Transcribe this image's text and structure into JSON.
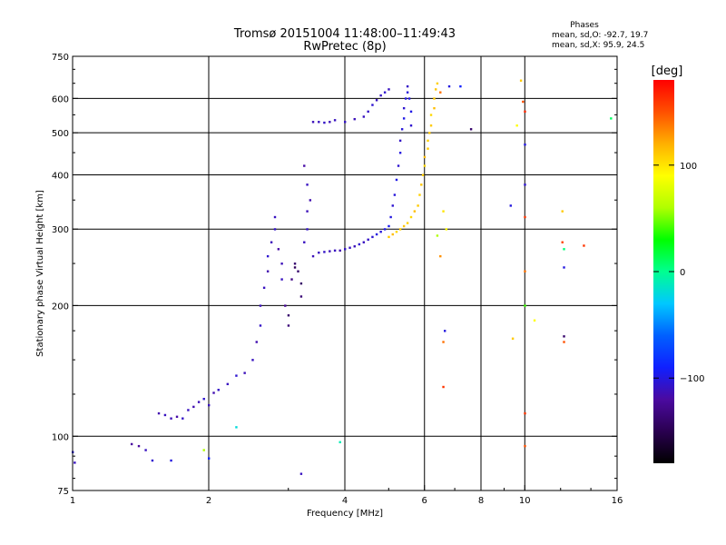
{
  "title": {
    "line1": "Tromsø 20151004 11:48:00–11:49:43",
    "line2": "RwPretec (8p)"
  },
  "phase_box": {
    "heading": "Phases",
    "line_o": "mean, sd,O: -92.7, 19.7",
    "line_x": "mean, sd,X:  95.9, 24.5"
  },
  "colorbar": {
    "unit": "[deg]",
    "ticks": [
      {
        "value": 100,
        "label": "100"
      },
      {
        "value": 0,
        "label": "0"
      },
      {
        "value": -100,
        "label": "−100"
      }
    ],
    "range": [
      -180,
      180
    ],
    "stops": [
      "#000000",
      "#2a0050",
      "#4b0aa0",
      "#1020ff",
      "#0060ff",
      "#00c8ff",
      "#00ff90",
      "#00ff00",
      "#b0ff00",
      "#ffff00",
      "#ffb000",
      "#ff5000",
      "#ff0000"
    ]
  },
  "chart_data": {
    "type": "scatter",
    "x_scale": "log",
    "y_scale": "log",
    "xlim": [
      1,
      16
    ],
    "ylim": [
      75,
      750
    ],
    "xlabel": "Frequency [MHz]",
    "ylabel": "Stationary phase Virtual Height [km]",
    "x_ticks": [
      {
        "value": 1,
        "label": "1"
      },
      {
        "value": 2,
        "label": "2"
      },
      {
        "value": 4,
        "label": "4"
      },
      {
        "value": 6,
        "label": "6"
      },
      {
        "value": 8,
        "label": "8"
      },
      {
        "value": 10,
        "label": "10"
      },
      {
        "value": 16,
        "label": "16"
      }
    ],
    "y_ticks": [
      {
        "value": 75,
        "label": "75"
      },
      {
        "value": 100,
        "label": "100"
      },
      {
        "value": 200,
        "label": "200"
      },
      {
        "value": 300,
        "label": "300"
      },
      {
        "value": 400,
        "label": "400"
      },
      {
        "value": 500,
        "label": "500"
      },
      {
        "value": 600,
        "label": "600"
      },
      {
        "value": 750,
        "label": "750"
      }
    ],
    "x_gridlines": [
      2,
      4,
      6,
      8,
      10
    ],
    "y_gridlines": [
      100,
      200,
      300,
      400,
      500,
      600
    ],
    "grid": true,
    "color_variable": "phase [deg]",
    "series": [
      {
        "points": [
          [
            1.4,
            95,
            -120
          ],
          [
            1.45,
            93,
            -110
          ],
          [
            1.5,
            88,
            -105
          ],
          [
            1.55,
            113,
            -115
          ],
          [
            1.6,
            112,
            -110
          ],
          [
            1.65,
            110,
            -112
          ],
          [
            1.7,
            111,
            -118
          ],
          [
            1.75,
            110,
            -108
          ],
          [
            1.8,
            115,
            -110
          ],
          [
            1.85,
            117,
            -115
          ],
          [
            1.9,
            120,
            -112
          ],
          [
            1.95,
            122,
            -105
          ],
          [
            2.0,
            118,
            -110
          ],
          [
            2.05,
            126,
            -115
          ],
          [
            2.1,
            128,
            -108
          ],
          [
            2.2,
            132,
            -110
          ],
          [
            2.3,
            138,
            -105
          ],
          [
            2.4,
            140,
            -112
          ],
          [
            2.5,
            150,
            -110
          ],
          [
            2.55,
            165,
            -115
          ],
          [
            2.6,
            180,
            -108
          ],
          [
            2.6,
            200,
            -112
          ],
          [
            2.65,
            220,
            -110
          ],
          [
            2.7,
            240,
            -115
          ],
          [
            2.7,
            260,
            -105
          ],
          [
            2.75,
            280,
            -112
          ],
          [
            2.8,
            300,
            -108
          ],
          [
            2.8,
            320,
            -110
          ],
          [
            2.85,
            270,
            -118
          ],
          [
            2.9,
            250,
            -112
          ],
          [
            2.9,
            230,
            -110
          ],
          [
            2.95,
            200,
            -125
          ],
          [
            3.0,
            190,
            -140
          ],
          [
            3.0,
            180,
            -135
          ],
          [
            3.05,
            230,
            -130
          ],
          [
            3.1,
            250,
            -138
          ],
          [
            3.1,
            245,
            -145
          ],
          [
            3.15,
            240,
            -140
          ],
          [
            3.2,
            225,
            -142
          ],
          [
            3.2,
            210,
            -136
          ],
          [
            3.25,
            280,
            -110
          ],
          [
            3.3,
            300,
            -108
          ],
          [
            3.3,
            330,
            -112
          ],
          [
            3.35,
            350,
            -115
          ],
          [
            3.3,
            380,
            -110
          ],
          [
            3.25,
            420,
            -118
          ],
          [
            3.4,
            260,
            -112
          ],
          [
            3.5,
            265,
            -110
          ],
          [
            3.6,
            266,
            -108
          ],
          [
            3.7,
            267,
            -112
          ],
          [
            3.8,
            268,
            -110
          ],
          [
            3.9,
            268,
            -115
          ],
          [
            4.0,
            270,
            -108
          ],
          [
            4.1,
            272,
            -110
          ],
          [
            4.2,
            274,
            -112
          ],
          [
            4.3,
            277,
            -105
          ],
          [
            4.4,
            280,
            -110
          ],
          [
            4.5,
            284,
            -108
          ],
          [
            4.6,
            288,
            -105
          ],
          [
            4.7,
            292,
            -100
          ],
          [
            4.8,
            296,
            -102
          ],
          [
            4.9,
            300,
            -98
          ],
          [
            5.0,
            305,
            -95
          ],
          [
            5.05,
            320,
            -100
          ],
          [
            5.1,
            340,
            -105
          ],
          [
            5.15,
            360,
            -102
          ],
          [
            5.2,
            390,
            -98
          ],
          [
            5.25,
            420,
            -105
          ],
          [
            5.3,
            450,
            -100
          ],
          [
            5.3,
            480,
            -108
          ],
          [
            5.35,
            510,
            -102
          ],
          [
            5.4,
            540,
            -98
          ],
          [
            5.4,
            570,
            -105
          ],
          [
            5.45,
            600,
            -100
          ],
          [
            5.5,
            620,
            -102
          ],
          [
            5.5,
            640,
            -108
          ],
          [
            5.55,
            600,
            -100
          ],
          [
            5.6,
            560,
            -98
          ],
          [
            5.6,
            520,
            -105
          ],
          [
            3.4,
            530,
            -112
          ],
          [
            3.5,
            530,
            -110
          ],
          [
            3.6,
            528,
            -108
          ],
          [
            3.7,
            530,
            -112
          ],
          [
            3.8,
            535,
            -110
          ],
          [
            4.0,
            530,
            -108
          ],
          [
            4.2,
            538,
            -112
          ],
          [
            4.4,
            545,
            -110
          ],
          [
            4.5,
            560,
            -108
          ],
          [
            4.6,
            580,
            -105
          ],
          [
            4.7,
            595,
            -110
          ],
          [
            4.8,
            610,
            -108
          ],
          [
            4.9,
            620,
            -105
          ],
          [
            5.0,
            630,
            -110
          ],
          [
            1.35,
            96,
            -120
          ],
          [
            1.65,
            88,
            -100
          ],
          [
            1.95,
            93,
            60
          ],
          [
            2.0,
            89,
            -90
          ],
          [
            2.3,
            105,
            -20
          ],
          [
            3.2,
            82,
            -110
          ],
          [
            3.9,
            97,
            -10
          ],
          [
            1.0,
            92,
            -100
          ],
          [
            1.01,
            87,
            -110
          ]
        ]
      },
      {
        "points": [
          [
            5.0,
            288,
            110
          ],
          [
            5.1,
            292,
            115
          ],
          [
            5.2,
            296,
            105
          ],
          [
            5.3,
            300,
            110
          ],
          [
            5.4,
            305,
            112
          ],
          [
            5.5,
            310,
            108
          ],
          [
            5.6,
            320,
            105
          ],
          [
            5.7,
            330,
            115
          ],
          [
            5.8,
            340,
            110
          ],
          [
            5.85,
            360,
            108
          ],
          [
            5.9,
            380,
            112
          ],
          [
            5.95,
            400,
            110
          ],
          [
            6.0,
            420,
            105
          ],
          [
            6.0,
            440,
            115
          ],
          [
            6.1,
            460,
            110
          ],
          [
            6.1,
            480,
            108
          ],
          [
            6.15,
            500,
            112
          ],
          [
            6.2,
            520,
            110
          ],
          [
            6.2,
            550,
            105
          ],
          [
            6.3,
            570,
            115
          ],
          [
            6.3,
            600,
            110
          ],
          [
            6.35,
            630,
            112
          ],
          [
            6.4,
            650,
            108
          ],
          [
            6.5,
            620,
            140
          ],
          [
            6.6,
            330,
            100
          ],
          [
            6.7,
            300,
            90
          ],
          [
            6.4,
            290,
            60
          ],
          [
            6.5,
            260,
            130
          ],
          [
            6.6,
            165,
            140
          ],
          [
            6.65,
            175,
            -100
          ],
          [
            6.6,
            130,
            160
          ],
          [
            6.8,
            640,
            -100
          ],
          [
            7.2,
            640,
            -90
          ],
          [
            7.6,
            510,
            -140
          ],
          [
            9.3,
            340,
            -100
          ],
          [
            9.6,
            520,
            90
          ],
          [
            9.8,
            660,
            110
          ],
          [
            9.9,
            590,
            150
          ],
          [
            10.0,
            560,
            165
          ],
          [
            10.0,
            470,
            -100
          ],
          [
            10.0,
            380,
            -105
          ],
          [
            10.0,
            320,
            160
          ],
          [
            10.0,
            240,
            140
          ],
          [
            10.0,
            200,
            40
          ],
          [
            10.0,
            113,
            160
          ],
          [
            10.0,
            95,
            150
          ],
          [
            10.5,
            185,
            90
          ],
          [
            9.4,
            168,
            110
          ],
          [
            12.1,
            330,
            110
          ],
          [
            12.1,
            280,
            155
          ],
          [
            12.2,
            270,
            5
          ],
          [
            12.2,
            245,
            -100
          ],
          [
            12.2,
            170,
            -140
          ],
          [
            12.2,
            165,
            150
          ],
          [
            13.5,
            275,
            160
          ],
          [
            15.5,
            540,
            10
          ]
        ]
      }
    ]
  }
}
